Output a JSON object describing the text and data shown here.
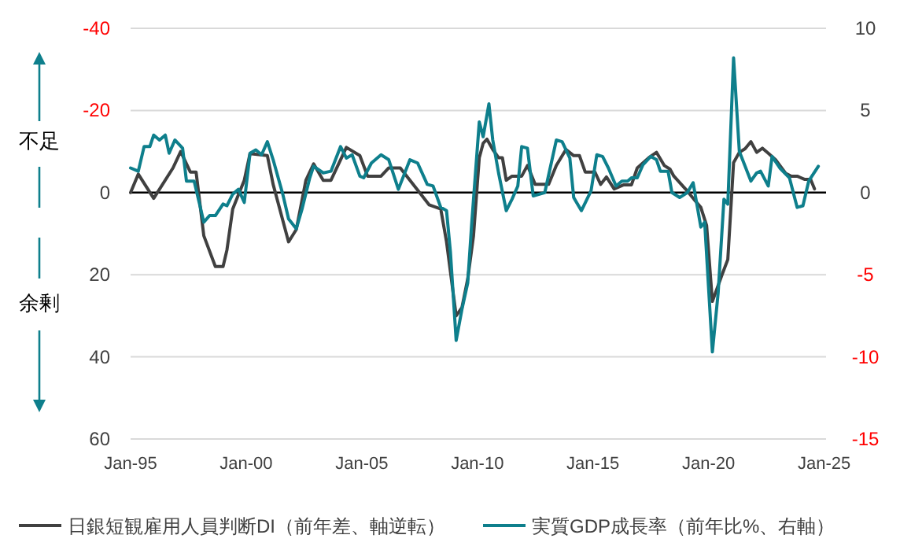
{
  "chart_data": {
    "type": "line",
    "annotations": [
      "不足",
      "余剰"
    ],
    "xlim": [
      "1995-01",
      "2025-02"
    ],
    "xticks": [
      {
        "value": "1995-01",
        "label": "Jan-95"
      },
      {
        "value": "2000-01",
        "label": "Jan-00"
      },
      {
        "value": "2005-01",
        "label": "Jan-05"
      },
      {
        "value": "2010-01",
        "label": "Jan-10"
      },
      {
        "value": "2015-01",
        "label": "Jan-15"
      },
      {
        "value": "2020-01",
        "label": "Jan-20"
      },
      {
        "value": "2025-01",
        "label": "Jan-25"
      }
    ],
    "ylim": [
      60,
      -40
    ],
    "yticks": [
      -40,
      -20,
      0,
      20,
      40,
      60
    ],
    "y2lim": [
      -15,
      10
    ],
    "y2ticks": [
      -15,
      -10,
      -5,
      0,
      5,
      10
    ],
    "grid": "y",
    "legend": "bottom",
    "ref_lines": [
      {
        "axis": "y",
        "value": 0,
        "color": "#000000"
      }
    ],
    "series": [
      {
        "name": "日銀短観雇用人員判断DI（前年差、軸逆転）",
        "color": "#404040",
        "x": [
          "1995-01",
          "1995-05",
          "1996-01",
          "1996-11",
          "1997-03",
          "1997-08",
          "1997-11",
          "1998-03",
          "1998-09",
          "1999-01",
          "1999-03",
          "1999-06",
          "1999-12",
          "2000-03",
          "2000-12",
          "2001-03",
          "2001-11",
          "2002-03",
          "2002-08",
          "2002-12",
          "2003-05",
          "2003-09",
          "2004-05",
          "2004-12",
          "2005-04",
          "2005-11",
          "2006-03",
          "2006-09",
          "2007-07",
          "2007-12",
          "2008-06",
          "2008-09",
          "2009-02",
          "2009-05",
          "2009-08",
          "2009-11",
          "2010-02",
          "2010-04",
          "2010-06",
          "2010-09",
          "2010-12",
          "2011-02",
          "2011-04",
          "2011-07",
          "2011-12",
          "2012-03",
          "2012-07",
          "2013-02",
          "2013-06",
          "2013-11",
          "2014-03",
          "2014-06",
          "2014-09",
          "2015-02",
          "2015-05",
          "2015-08",
          "2015-12",
          "2016-05",
          "2016-09",
          "2016-12",
          "2017-06",
          "2017-10",
          "2018-02",
          "2018-05",
          "2018-07",
          "2019-01",
          "2019-05",
          "2019-09",
          "2019-12",
          "2020-03",
          "2020-08",
          "2020-11",
          "2021-02",
          "2021-05",
          "2021-08",
          "2021-11",
          "2022-02",
          "2022-05",
          "2022-08",
          "2022-12",
          "2023-05",
          "2023-08",
          "2023-11",
          "2024-03",
          "2024-06",
          "2024-08"
        ],
        "values": [
          0,
          -4.5,
          1.4,
          -6,
          -10,
          -5,
          -5,
          10.5,
          18,
          18,
          14,
          4,
          -3,
          -9.5,
          -9,
          -2,
          12,
          9,
          -3,
          -7,
          -3,
          -3,
          -11,
          -9,
          -4,
          -4,
          -6,
          -6,
          0,
          3,
          4,
          12,
          30,
          28,
          21,
          10.5,
          -8.5,
          -12,
          -13,
          -10.5,
          -8.5,
          -8.5,
          -3,
          -4,
          -4,
          -6.6,
          -2,
          -2,
          -6.6,
          -10.5,
          -9,
          -9,
          -5,
          -5,
          -2,
          -3.8,
          -0.9,
          -1.9,
          -1.9,
          -6,
          -8.5,
          -9.8,
          -6.6,
          -5.7,
          -4,
          -0.9,
          1.4,
          3.6,
          8,
          26.5,
          20,
          16.3,
          -7.3,
          -9.8,
          -10.7,
          -12.4,
          -9.8,
          -10.8,
          -9.6,
          -7.9,
          -4.7,
          -4,
          -4,
          -3.2,
          -3.2,
          -0.9
        ]
      },
      {
        "name": "実質GDP成長率（前年比%、右軸）",
        "color": "#0e7f8c",
        "axis": "y2",
        "x": [
          "1995-01",
          "1995-05",
          "1995-08",
          "1995-11",
          "1996-01",
          "1996-04",
          "1996-07",
          "1996-09",
          "1996-12",
          "1997-04",
          "1997-06",
          "1997-10",
          "1998-03",
          "1998-06",
          "1998-09",
          "1999-01",
          "1999-03",
          "1999-06",
          "1999-09",
          "1999-12",
          "2000-03",
          "2000-06",
          "2000-09",
          "2000-12",
          "2001-03",
          "2001-08",
          "2001-11",
          "2002-03",
          "2002-06",
          "2002-10",
          "2002-12",
          "2003-05",
          "2003-09",
          "2004-02",
          "2004-05",
          "2004-08",
          "2004-12",
          "2005-02",
          "2005-06",
          "2005-11",
          "2006-03",
          "2006-08",
          "2007-02",
          "2007-06",
          "2007-11",
          "2008-02",
          "2008-06",
          "2008-09",
          "2008-11",
          "2009-02",
          "2009-05",
          "2009-08",
          "2009-10",
          "2010-02",
          "2010-04",
          "2010-07",
          "2010-09",
          "2010-12",
          "2011-04",
          "2011-07",
          "2011-10",
          "2011-12",
          "2012-03",
          "2012-06",
          "2012-12",
          "2013-06",
          "2013-09",
          "2014-01",
          "2014-03",
          "2014-07",
          "2014-12",
          "2015-03",
          "2015-06",
          "2015-09",
          "2016-01",
          "2016-04",
          "2016-07",
          "2016-09",
          "2016-12",
          "2017-03",
          "2017-07",
          "2017-10",
          "2017-12",
          "2018-04",
          "2018-06",
          "2018-10",
          "2019-02",
          "2019-05",
          "2019-09",
          "2019-11",
          "2020-03",
          "2020-06",
          "2020-09",
          "2020-11",
          "2021-02",
          "2021-05",
          "2021-11",
          "2022-02",
          "2022-04",
          "2022-08",
          "2022-10",
          "2023-02",
          "2023-07",
          "2023-11",
          "2024-02",
          "2024-05",
          "2024-10"
        ],
        "values": [
          1.5,
          1.3,
          2.8,
          2.8,
          3.5,
          3.2,
          3.5,
          2.4,
          3.2,
          2.7,
          0.7,
          0.7,
          -1.8,
          -1.4,
          -1.4,
          -0.7,
          -0.8,
          -0.1,
          0.2,
          -0.6,
          2.4,
          2.6,
          2.3,
          3.1,
          2.0,
          -0.1,
          -1.6,
          -2.2,
          -1.0,
          0.9,
          1.6,
          1.2,
          1.3,
          2.8,
          2.1,
          2.3,
          1.0,
          0.9,
          1.8,
          2.3,
          2.0,
          0.2,
          2.0,
          1.8,
          0.5,
          0.4,
          -0.9,
          -1.1,
          -3.6,
          -9.0,
          -7.1,
          -5.5,
          -2.0,
          4.3,
          3.4,
          5.4,
          3.2,
          1.2,
          -1.1,
          -0.4,
          0.4,
          2.8,
          2.7,
          -0.2,
          0,
          3.2,
          3.1,
          2.1,
          -0.3,
          -1.1,
          0.1,
          2.3,
          2.2,
          1.5,
          0.4,
          0.7,
          0.7,
          0.9,
          0.9,
          1.7,
          2.2,
          2.0,
          1.3,
          1.3,
          0,
          -0.3,
          0,
          0.6,
          -2.1,
          -1.8,
          -9.7,
          -6.1,
          -0.4,
          -0.7,
          8.2,
          2.5,
          0.7,
          1.2,
          1.3,
          0.4,
          2.2,
          1.5,
          0.9,
          -0.9,
          -0.8,
          0.7,
          1.6
        ]
      }
    ]
  }
}
